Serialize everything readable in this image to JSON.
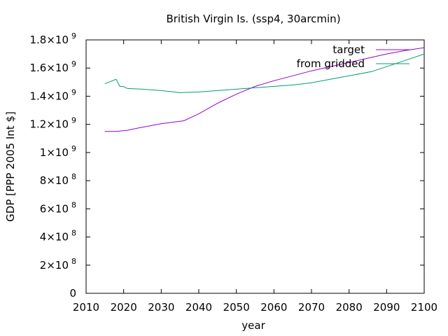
{
  "chart_data": {
    "type": "line",
    "title": "British Virgin Is. (ssp4, 30arcmin)",
    "xlabel": "year",
    "ylabel": "GDP [PPP 2005 Int $]",
    "xlim": [
      2010,
      2100
    ],
    "ylim": [
      0,
      1800000000
    ],
    "x_ticks": [
      2010,
      2020,
      2030,
      2040,
      2050,
      2060,
      2070,
      2080,
      2090,
      2100
    ],
    "y_ticks": [
      {
        "value": 0,
        "mantissa": "0",
        "exponent": ""
      },
      {
        "value": 200000000,
        "mantissa": "2×10",
        "exponent": "8"
      },
      {
        "value": 400000000,
        "mantissa": "4×10",
        "exponent": "8"
      },
      {
        "value": 600000000,
        "mantissa": "6×10",
        "exponent": "8"
      },
      {
        "value": 800000000,
        "mantissa": "8×10",
        "exponent": "8"
      },
      {
        "value": 1000000000,
        "mantissa": "1×10",
        "exponent": "9"
      },
      {
        "value": 1200000000,
        "mantissa": "1.2×10",
        "exponent": "9"
      },
      {
        "value": 1400000000,
        "mantissa": "1.4×10",
        "exponent": "9"
      },
      {
        "value": 1600000000,
        "mantissa": "1.6×10",
        "exponent": "9"
      },
      {
        "value": 1800000000,
        "mantissa": "1.8×10",
        "exponent": "9"
      }
    ],
    "grid": false,
    "legend": "top-right",
    "series": [
      {
        "name": "target",
        "color": "#9400d3",
        "x": [
          2015,
          2018,
          2021,
          2024,
          2027,
          2030,
          2033,
          2036,
          2040,
          2045,
          2050,
          2055,
          2060,
          2065,
          2070,
          2075,
          2080,
          2085,
          2090,
          2095,
          2100
        ],
        "y": [
          1150000000,
          1150000000,
          1158000000,
          1175000000,
          1190000000,
          1205000000,
          1215000000,
          1225000000,
          1275000000,
          1350000000,
          1415000000,
          1470000000,
          1510000000,
          1545000000,
          1580000000,
          1610000000,
          1640000000,
          1670000000,
          1700000000,
          1725000000,
          1745000000
        ]
      },
      {
        "name": "from gridded",
        "color": "#009e73",
        "x": [
          2015,
          2018,
          2019,
          2020,
          2021,
          2025,
          2030,
          2035,
          2040,
          2045,
          2050,
          2055,
          2060,
          2065,
          2070,
          2075,
          2080,
          2086,
          2090,
          2095,
          2100
        ],
        "y": [
          1488000000,
          1520000000,
          1470000000,
          1468000000,
          1455000000,
          1450000000,
          1440000000,
          1425000000,
          1430000000,
          1440000000,
          1450000000,
          1460000000,
          1470000000,
          1480000000,
          1495000000,
          1520000000,
          1545000000,
          1575000000,
          1610000000,
          1655000000,
          1700000000
        ]
      }
    ]
  }
}
